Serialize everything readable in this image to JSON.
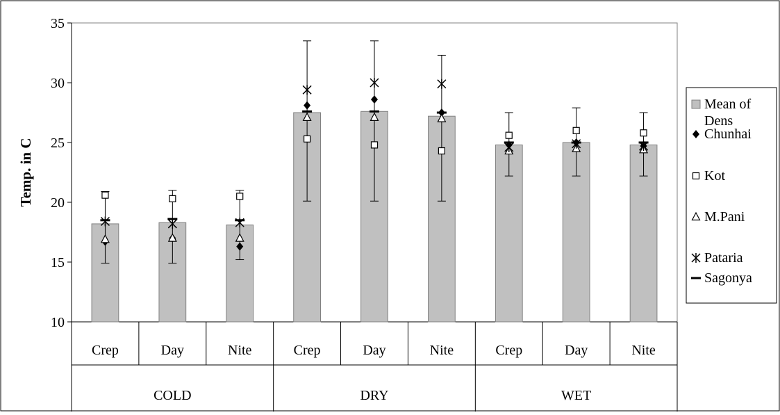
{
  "chart_data": {
    "type": "bar",
    "title": "",
    "ylabel": "Temp. in C",
    "xlabel": "",
    "ylim": [
      10,
      35
    ],
    "yticks": [
      10,
      15,
      20,
      25,
      30,
      35
    ],
    "grid": false,
    "legend_position": "right",
    "groups": [
      {
        "label": "COLD",
        "categories": [
          "Crep",
          "Day",
          "Nite"
        ]
      },
      {
        "label": "DRY",
        "categories": [
          "Crep",
          "Day",
          "Nite"
        ]
      },
      {
        "label": "WET",
        "categories": [
          "Crep",
          "Day",
          "Nite"
        ]
      }
    ],
    "bar_series": {
      "name": "Mean of Dens",
      "color": "#c0c0c0",
      "values": [
        18.2,
        18.3,
        18.1,
        27.5,
        27.6,
        27.2,
        24.8,
        25.0,
        24.8
      ],
      "error_low": [
        14.9,
        14.9,
        15.2,
        20.1,
        20.1,
        20.1,
        22.2,
        22.2,
        22.2
      ],
      "error_high": [
        20.9,
        21.0,
        21.0,
        33.5,
        33.5,
        32.3,
        27.5,
        27.9,
        27.5
      ]
    },
    "point_series": [
      {
        "name": "Chunhai",
        "marker": "diamond",
        "values": [
          16.7,
          17.0,
          16.3,
          28.1,
          28.6,
          27.5,
          24.8,
          25.0,
          24.7
        ]
      },
      {
        "name": "Kot",
        "marker": "square",
        "values": [
          20.6,
          20.3,
          20.5,
          25.3,
          24.8,
          24.3,
          25.6,
          26.0,
          25.8
        ]
      },
      {
        "name": "M.Pani",
        "marker": "triangle",
        "values": [
          16.9,
          17.0,
          17.0,
          27.1,
          27.1,
          27.0,
          24.3,
          24.5,
          24.4
        ]
      },
      {
        "name": "Pataria",
        "marker": "asterisk",
        "values": [
          18.4,
          18.2,
          18.3,
          29.4,
          30.0,
          29.9,
          24.6,
          24.9,
          24.7
        ]
      },
      {
        "name": "Sagonya",
        "marker": "dash",
        "values": [
          18.5,
          18.6,
          18.5,
          27.6,
          27.6,
          27.5,
          25.0,
          25.0,
          25.0
        ]
      }
    ]
  }
}
